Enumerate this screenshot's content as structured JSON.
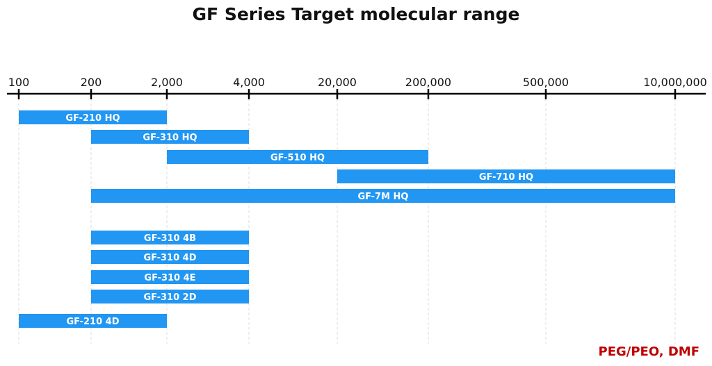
{
  "chart_data": {
    "type": "range-bar",
    "title": "GF Series Target molecular range",
    "xscale": "categorical (non-linear)",
    "xticks": [
      100,
      200,
      2000,
      4000,
      20000,
      200000,
      500000,
      10000000
    ],
    "xtick_labels": [
      "100",
      "200",
      "2,000",
      "4,000",
      "20,000",
      "200,000",
      "500,000",
      "10,000,000"
    ],
    "bars": [
      {
        "label": "GF-210 HQ",
        "start": 100,
        "end": 2000
      },
      {
        "label": "GF-310 HQ",
        "start": 200,
        "end": 4000
      },
      {
        "label": "GF-510 HQ",
        "start": 2000,
        "end": 200000
      },
      {
        "label": "GF-710 HQ",
        "start": 20000,
        "end": 10000000
      },
      {
        "label": "GF-7M HQ",
        "start": 200,
        "end": 10000000
      },
      {
        "label": "GF-310 4B",
        "start": 200,
        "end": 4000
      },
      {
        "label": "GF-310 4D",
        "start": 200,
        "end": 4000
      },
      {
        "label": "GF-310 4E",
        "start": 200,
        "end": 4000
      },
      {
        "label": "GF-310 2D",
        "start": 200,
        "end": 4000
      },
      {
        "label": "GF-210 4D",
        "start": 100,
        "end": 2000
      }
    ],
    "grid": true,
    "bar_color": "#2196f3",
    "footnote": "PEG/PEO, DMF",
    "footnote_color": "#c00000"
  }
}
